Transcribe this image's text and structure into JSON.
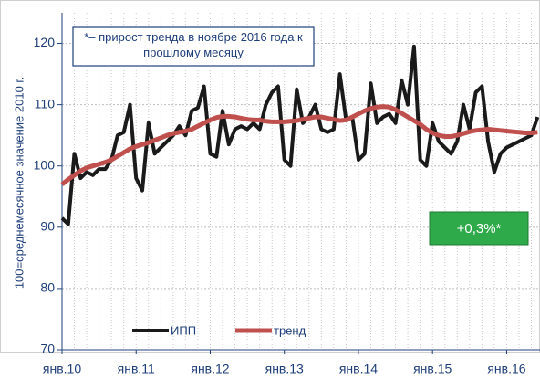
{
  "chart_data": {
    "type": "line",
    "y_label": "100=среднемесячное значение 2010 г.",
    "annotation": "*– прирост тренда в ноябре 2016 года к прошлому месяцу",
    "badge": "+0,3%*",
    "categories": [
      "янв.10",
      null,
      null,
      null,
      null,
      null,
      null,
      null,
      null,
      null,
      null,
      null,
      "янв.11",
      null,
      null,
      null,
      null,
      null,
      null,
      null,
      null,
      null,
      null,
      null,
      "янв.12",
      null,
      null,
      null,
      null,
      null,
      null,
      null,
      null,
      null,
      null,
      null,
      "янв.13",
      null,
      null,
      null,
      null,
      null,
      null,
      null,
      null,
      null,
      null,
      null,
      "янв.14",
      null,
      null,
      null,
      null,
      null,
      null,
      null,
      null,
      null,
      null,
      null,
      "янв.15",
      null,
      null,
      null,
      null,
      null,
      null,
      null,
      null,
      null,
      null,
      null,
      "янв.16",
      null,
      null,
      null,
      null,
      null
    ],
    "series": [
      {
        "name": "ИПП",
        "color": "#1a1a1a",
        "values": [
          91.5,
          90.5,
          102,
          98,
          99,
          98.5,
          99.5,
          99.5,
          101,
          105,
          105.5,
          110,
          98,
          96,
          107,
          102,
          103,
          104,
          105,
          106.5,
          105,
          109,
          109.5,
          113,
          102,
          101.5,
          109,
          103.5,
          106,
          106.5,
          106,
          107,
          106,
          110,
          112,
          113,
          101,
          100,
          112.5,
          107,
          108,
          110,
          106,
          105.5,
          106,
          115,
          107.5,
          108,
          101,
          102,
          113.5,
          107,
          108,
          108.5,
          107,
          114,
          110,
          119.5,
          101,
          100,
          107,
          104,
          103,
          102,
          104,
          110,
          106,
          112,
          113,
          104,
          99,
          102,
          103,
          103.5,
          104,
          104.5,
          105,
          108
        ]
      },
      {
        "name": "тренд",
        "color": "#c0504d",
        "values": [
          97,
          97.8,
          98.5,
          99.2,
          99.7,
          100,
          100.3,
          100.6,
          101,
          101.6,
          102.2,
          102.8,
          103.2,
          103.5,
          103.8,
          104.2,
          104.6,
          105,
          105.3,
          105.5,
          105.7,
          106,
          106.5,
          107,
          107.5,
          107.9,
          108.1,
          108.1,
          108,
          107.8,
          107.6,
          107.5,
          107.5,
          107.3,
          107.2,
          107.2,
          107.2,
          107.3,
          107.4,
          107.6,
          107.8,
          108,
          108,
          107.8,
          107.6,
          107.4,
          107.5,
          108,
          108.5,
          109,
          109.4,
          109.6,
          109.7,
          109.6,
          109.2,
          108.6,
          108,
          107.4,
          106.8,
          106,
          105.4,
          105,
          104.8,
          104.8,
          105,
          105.3,
          105.6,
          105.8,
          105.9,
          106,
          105.9,
          105.8,
          105.7,
          105.6,
          105.5,
          105.4,
          105.4,
          105.5
        ]
      }
    ],
    "ylim": [
      70,
      125
    ],
    "yticks": [
      70,
      80,
      90,
      100,
      110,
      120
    ],
    "grid": true
  }
}
